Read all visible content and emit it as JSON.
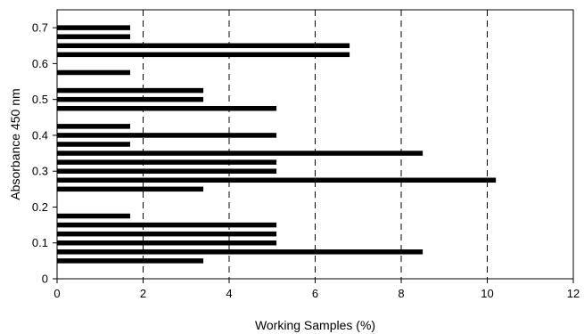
{
  "chart_data": {
    "type": "bar",
    "orientation": "horizontal",
    "title": "",
    "xlabel": "Working Samples (%)",
    "ylabel": "Absorbance 450 nm",
    "xlim": [
      0,
      12
    ],
    "ylim": [
      0,
      0.75
    ],
    "x_ticks": [
      "0",
      "2",
      "4",
      "6",
      "8",
      "10",
      "12"
    ],
    "y_ticks": [
      "0",
      "0.1",
      "0.2",
      "0.3",
      "0.4",
      "0.5",
      "0.6",
      "0.7"
    ],
    "grid": "vertical dashed at x = 2, 4, 6, 8, 10",
    "bar_color": "#000000",
    "bars": [
      {
        "y": 0.05,
        "x": 3.4
      },
      {
        "y": 0.075,
        "x": 8.5
      },
      {
        "y": 0.1,
        "x": 5.1
      },
      {
        "y": 0.125,
        "x": 5.1
      },
      {
        "y": 0.15,
        "x": 5.1
      },
      {
        "y": 0.175,
        "x": 1.7
      },
      {
        "y": 0.25,
        "x": 3.4
      },
      {
        "y": 0.275,
        "x": 10.2
      },
      {
        "y": 0.3,
        "x": 5.1
      },
      {
        "y": 0.325,
        "x": 5.1
      },
      {
        "y": 0.35,
        "x": 8.5
      },
      {
        "y": 0.375,
        "x": 1.7
      },
      {
        "y": 0.4,
        "x": 5.1
      },
      {
        "y": 0.425,
        "x": 1.7
      },
      {
        "y": 0.475,
        "x": 5.1
      },
      {
        "y": 0.5,
        "x": 3.4
      },
      {
        "y": 0.525,
        "x": 3.4
      },
      {
        "y": 0.575,
        "x": 1.7
      },
      {
        "y": 0.625,
        "x": 6.8
      },
      {
        "y": 0.65,
        "x": 6.8
      },
      {
        "y": 0.675,
        "x": 1.7
      },
      {
        "y": 0.7,
        "x": 1.7
      }
    ]
  }
}
